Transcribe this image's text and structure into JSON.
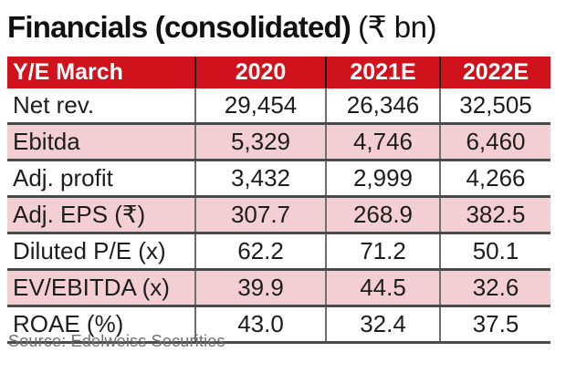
{
  "title": {
    "main": "Financials (consolidated)",
    "unit": "(₹ bn)"
  },
  "source": "Source: Edelweiss Securities",
  "colors": {
    "header_red": "#d0121c",
    "row_pink": "#f3cfd3",
    "rule_dark": "#4a4a4a",
    "rule_gray": "#6f6f6f",
    "header_text": "#ffffff",
    "body_text": "#1d1d1d",
    "source_text": "#6f6f6f"
  },
  "chart_data": {
    "type": "table",
    "title": "Financials (consolidated) (₹ bn)",
    "columns": [
      "Y/E March",
      "2020",
      "2021E",
      "2022E"
    ],
    "rows": [
      {
        "label": "Net rev.",
        "values": [
          "29,454",
          "26,346",
          "32,505"
        ],
        "highlight": false
      },
      {
        "label": "Ebitda",
        "values": [
          "5,329",
          "4,746",
          "6,460"
        ],
        "highlight": true
      },
      {
        "label": "Adj. profit",
        "values": [
          "3,432",
          "2,999",
          "4,266"
        ],
        "highlight": false
      },
      {
        "label": "Adj. EPS (₹)",
        "values": [
          "307.7",
          "268.9",
          "382.5"
        ],
        "highlight": true
      },
      {
        "label": "Diluted P/E (x)",
        "values": [
          "62.2",
          "71.2",
          "50.1"
        ],
        "highlight": false
      },
      {
        "label": "EV/EBITDA (x)",
        "values": [
          "39.9",
          "44.5",
          "32.6"
        ],
        "highlight": true
      },
      {
        "label": "ROAE (%)",
        "values": [
          "43.0",
          "32.4",
          "37.5"
        ],
        "highlight": false
      }
    ]
  }
}
